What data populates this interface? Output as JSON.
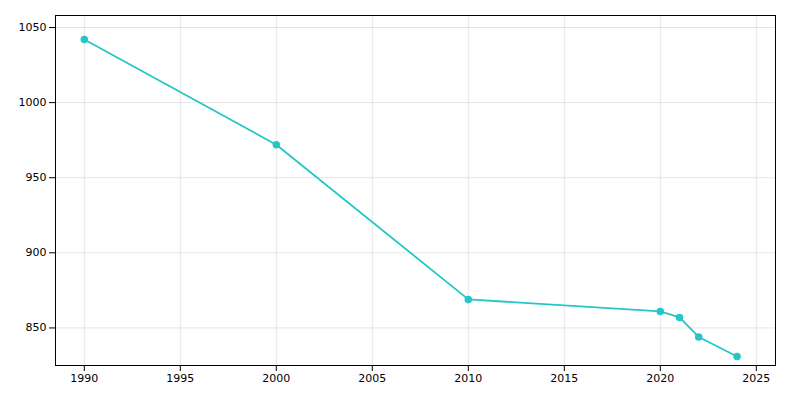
{
  "chart_data": {
    "type": "line",
    "x": [
      1990,
      2000,
      2010,
      2020,
      2021,
      2022,
      2024
    ],
    "values": [
      1042,
      972,
      869,
      861,
      857,
      844,
      831
    ],
    "color": "#26C6C6",
    "marker": "circle",
    "xlim": [
      1988.5,
      2026
    ],
    "ylim": [
      825,
      1058
    ],
    "xticks": [
      1990,
      1995,
      2000,
      2005,
      2010,
      2015,
      2020,
      2025
    ],
    "yticks": [
      850,
      900,
      950,
      1000,
      1050
    ],
    "grid": true
  }
}
